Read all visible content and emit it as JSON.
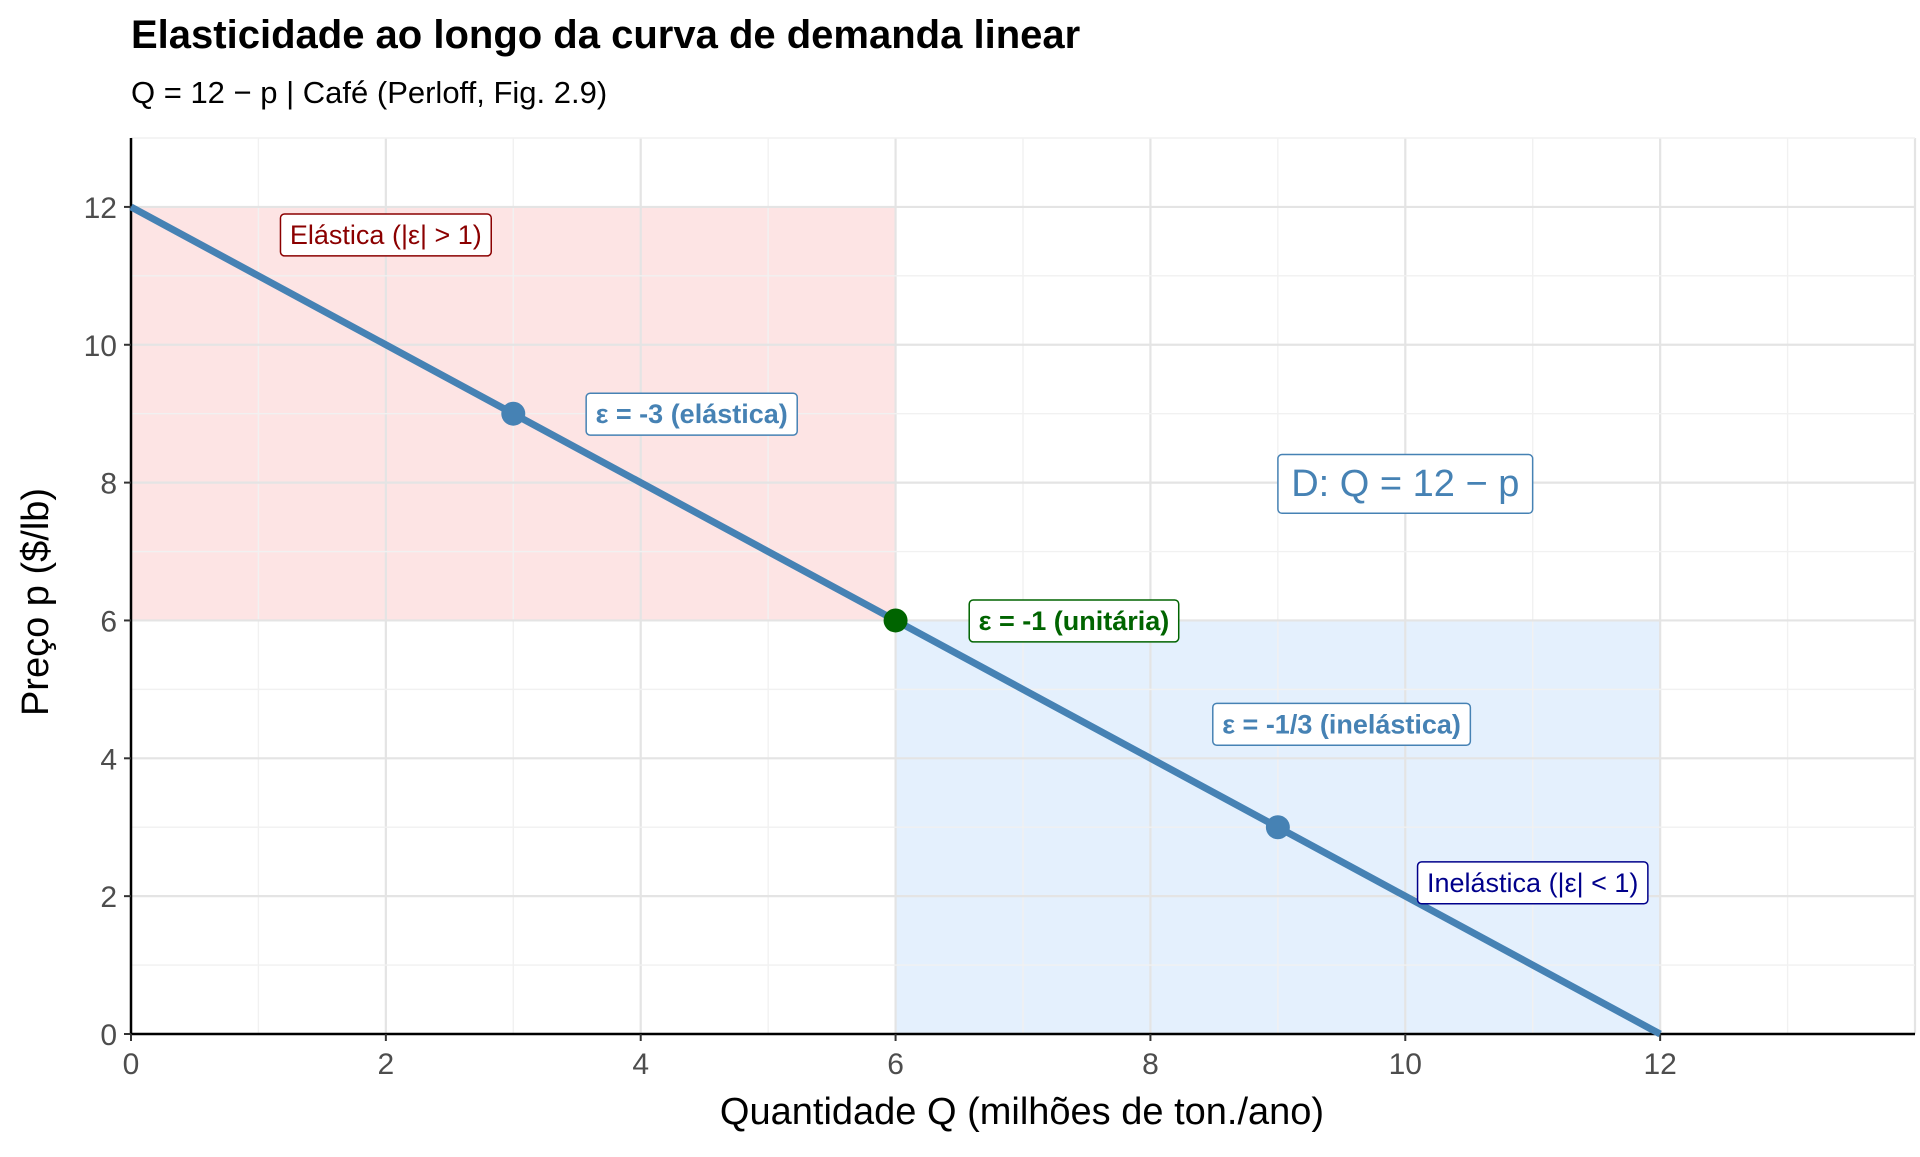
{
  "chart_data": {
    "type": "line",
    "title": "Elasticidade ao longo da curva de demanda linear",
    "subtitle": "Q = 12 − p  |  Café (Perloff, Fig. 2.9)",
    "xlabel": "Quantidade Q (milhões de ton./ano)",
    "ylabel": "Preço p ($/lb)",
    "xlim": [
      0,
      14
    ],
    "ylim": [
      0,
      13
    ],
    "x_ticks": [
      0,
      2,
      4,
      6,
      8,
      10,
      12
    ],
    "y_ticks": [
      0,
      2,
      4,
      6,
      8,
      10,
      12
    ],
    "grid": true,
    "series": [
      {
        "name": "D: Q = 12 − p",
        "x": [
          0,
          12
        ],
        "y": [
          12,
          0
        ],
        "color": "#4682b4"
      }
    ],
    "regions": [
      {
        "label": "Elástica (|ε| > 1)",
        "x_range": [
          0,
          6
        ],
        "y_range": [
          6,
          12
        ],
        "fill": "#fde4e4",
        "label_color": "#8b0000",
        "label_at": [
          2.0,
          11.6
        ]
      },
      {
        "label": "Inelástica (|ε| < 1)",
        "x_range": [
          6,
          12
        ],
        "y_range": [
          0,
          6
        ],
        "fill": "#e4f0fd",
        "label_color": "#00008b",
        "label_at": [
          11.0,
          2.2
        ]
      }
    ],
    "points": [
      {
        "x": 3,
        "y": 9,
        "label": "ε = -3 (elástica)",
        "color": "#4682b4",
        "label_at": [
          4.4,
          9.0
        ]
      },
      {
        "x": 6,
        "y": 6,
        "label": "ε = -1 (unitária)",
        "color": "#006400",
        "label_at": [
          7.4,
          6.0
        ]
      },
      {
        "x": 9,
        "y": 3,
        "label": "ε = -1/3 (inelástica)",
        "color": "#4682b4",
        "label_at": [
          9.5,
          4.5
        ]
      }
    ],
    "curve_label": {
      "text": "D: Q = 12 − p",
      "color": "#4682b4",
      "label_at": [
        10.0,
        8.0
      ]
    }
  }
}
